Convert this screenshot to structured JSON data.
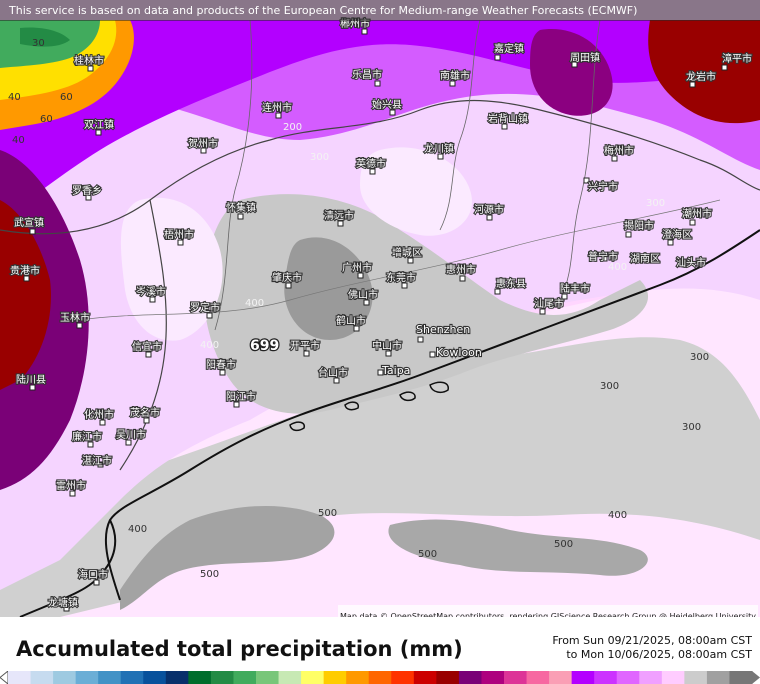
{
  "banner": {
    "text": "This service is based on data and products of the European Centre for Medium-range Weather Forecasts (ECMWF)"
  },
  "legend": {
    "title": "Accumulated total precipitation (mm)",
    "period_from": "From Sun 09/21/2025, 08:00am CST",
    "period_to": "to Mon 10/06/2025, 08:00am CST",
    "colors": [
      "#e6e6fa",
      "#c6dbef",
      "#9ecae1",
      "#6baed6",
      "#4292c6",
      "#2171b5",
      "#08519c",
      "#08306b",
      "#006d2c",
      "#238b45",
      "#41ab5d",
      "#78c679",
      "#c7e9b4",
      "#ffff66",
      "#ffcc00",
      "#ff9900",
      "#ff6600",
      "#ff3300",
      "#cc0000",
      "#990000",
      "#7a0177",
      "#ae017e",
      "#dd3497",
      "#f768a1",
      "#fa9fb5",
      "#b400ff",
      "#cc33ff",
      "#e066ff",
      "#f0a0ff",
      "#ffccff",
      "#cccccc",
      "#a0a0a0",
      "#777777"
    ]
  },
  "attribution": {
    "text": "Map data © OpenStreetMap contributors, rendering GIScience Research Group @ Heidelberg University"
  },
  "places": [
    {
      "name": "郴州市"
    },
    {
      "name": "嘉定镇"
    },
    {
      "name": "周田镇"
    },
    {
      "name": "桂林市"
    },
    {
      "name": "乐昌市"
    },
    {
      "name": "南雄市"
    },
    {
      "name": "漳平市"
    },
    {
      "name": "龙岩市"
    },
    {
      "name": "连州市"
    },
    {
      "name": "始兴县"
    },
    {
      "name": "双江镇"
    },
    {
      "name": "贺州市"
    },
    {
      "name": "岩背山镇"
    },
    {
      "name": "龙川镇"
    },
    {
      "name": "梅州市"
    },
    {
      "name": "英德市"
    },
    {
      "name": "兴宁市"
    },
    {
      "name": "罗香乡"
    },
    {
      "name": "怀集镇"
    },
    {
      "name": "清远市"
    },
    {
      "name": "河源市"
    },
    {
      "name": "潮州市"
    },
    {
      "name": "武宣镇"
    },
    {
      "name": "揭阳市"
    },
    {
      "name": "澄海区"
    },
    {
      "name": "梧州市"
    },
    {
      "name": "增城区"
    },
    {
      "name": "汕头市"
    },
    {
      "name": "贵港市"
    },
    {
      "name": "广州市"
    },
    {
      "name": "肇庆市"
    },
    {
      "name": "惠州市"
    },
    {
      "name": "普宁市"
    },
    {
      "name": "湖南区"
    },
    {
      "name": "佛山市"
    },
    {
      "name": "东莞市"
    },
    {
      "name": "惠东县"
    },
    {
      "name": "陆丰市"
    },
    {
      "name": "岑溪市"
    },
    {
      "name": "罗定市"
    },
    {
      "name": "玉林市"
    },
    {
      "name": "鹤山市"
    },
    {
      "name": "汕尾市"
    },
    {
      "name": "信宜市"
    },
    {
      "name": "开平市"
    },
    {
      "name": "中山市"
    },
    {
      "name": "Shenzhen"
    },
    {
      "name": "Kowloon"
    },
    {
      "name": "阳春市"
    },
    {
      "name": "台山市"
    },
    {
      "name": "Taipa"
    },
    {
      "name": "陆川县"
    },
    {
      "name": "阳江市"
    },
    {
      "name": "化州市"
    },
    {
      "name": "茂名市"
    },
    {
      "name": "廉江市"
    },
    {
      "name": "吴川市"
    },
    {
      "name": "湛江市"
    },
    {
      "name": "雷州市"
    },
    {
      "name": "海口市"
    },
    {
      "name": "龙塘镇"
    },
    {
      "name": "广州市"
    },
    {
      "name": "汕头市"
    }
  ],
  "contour_labels": [
    "300",
    "500",
    "500",
    "500",
    "500",
    "300",
    "300",
    "400",
    "400",
    "400",
    "400",
    "300",
    "400",
    "200",
    "300",
    "40",
    "60",
    "30",
    "40",
    "60",
    "699"
  ]
}
